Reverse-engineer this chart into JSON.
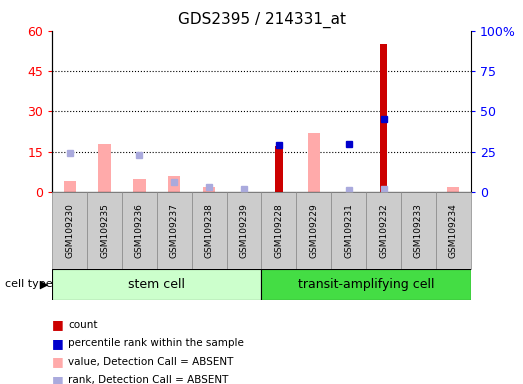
{
  "title": "GDS2395 / 214331_at",
  "samples": [
    "GSM109230",
    "GSM109235",
    "GSM109236",
    "GSM109237",
    "GSM109238",
    "GSM109239",
    "GSM109228",
    "GSM109229",
    "GSM109231",
    "GSM109232",
    "GSM109233",
    "GSM109234"
  ],
  "count": [
    null,
    null,
    null,
    null,
    null,
    null,
    17,
    null,
    null,
    55,
    null,
    null
  ],
  "percentile_rank": [
    null,
    null,
    null,
    null,
    null,
    null,
    29,
    null,
    30,
    45,
    null,
    null
  ],
  "value_absent": [
    4,
    18,
    5,
    6,
    2,
    null,
    null,
    22,
    null,
    null,
    null,
    2
  ],
  "rank_absent": [
    24,
    null,
    23,
    6,
    3,
    2,
    null,
    null,
    1,
    2,
    null,
    null
  ],
  "left_ylim": [
    0,
    60
  ],
  "right_ylim": [
    0,
    100
  ],
  "left_yticks": [
    0,
    15,
    30,
    45,
    60
  ],
  "right_yticks": [
    0,
    25,
    50,
    75,
    100
  ],
  "right_yticklabels": [
    "0",
    "25",
    "50",
    "75",
    "100%"
  ],
  "left_yticklabels": [
    "0",
    "15",
    "30",
    "45",
    "60"
  ],
  "group1_label": "stem cell",
  "group2_label": "transit-amplifying cell",
  "group1_n": 6,
  "group2_n": 6,
  "legend_items": [
    {
      "label": "count",
      "color": "#cc0000"
    },
    {
      "label": "percentile rank within the sample",
      "color": "#0000cc"
    },
    {
      "label": "value, Detection Call = ABSENT",
      "color": "#ffaaaa"
    },
    {
      "label": "rank, Detection Call = ABSENT",
      "color": "#aaaadd"
    }
  ],
  "count_color": "#cc0000",
  "percentile_color": "#0000cc",
  "value_absent_color": "#ffaaaa",
  "rank_absent_color": "#aaaadd",
  "plot_bg": "#ffffff",
  "sample_box_color": "#cccccc",
  "sample_box_edge": "#888888",
  "group1_bg": "#ccffcc",
  "group2_bg": "#44dd44",
  "dotted_grid_color": "#000000"
}
